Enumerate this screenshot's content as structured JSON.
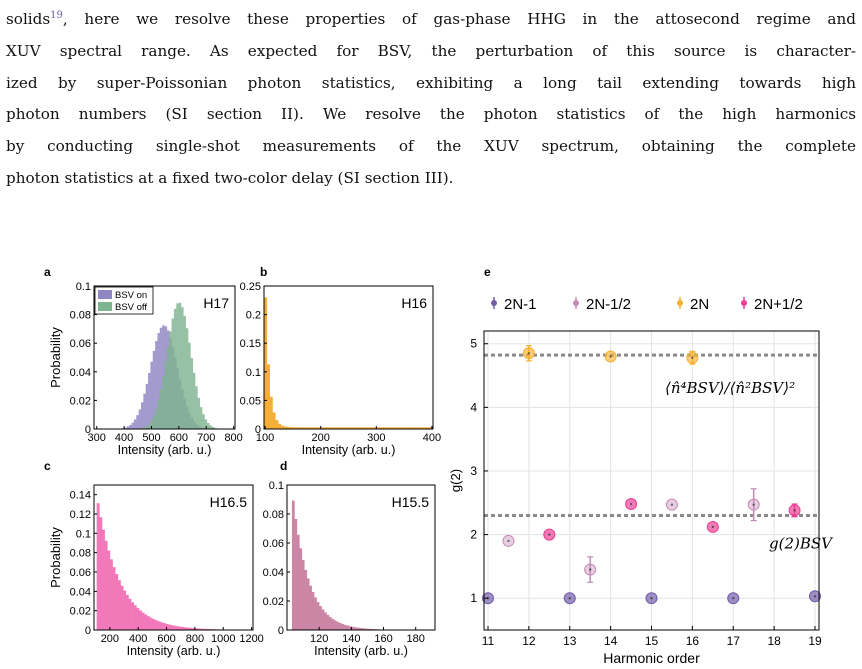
{
  "text": {
    "lines": [
      {
        "pre": "solids",
        "cite": "19",
        "post": ", here we resolve these properties of gas-phase HHG in the attosecond regime and"
      },
      {
        "pre": "XUV spectral range.  As expected for BSV, the perturbation of this source is character-"
      },
      {
        "pre": "ized by super-Poissonian photon statistics, exhibiting a long tail extending towards high"
      },
      {
        "pre": "photon numbers (SI section II). We resolve the photon statistics of the high harmonics"
      },
      {
        "pre": "by conducting single-shot measurements of the XUV spectrum, obtaining the complete"
      },
      {
        "pre": "photon statistics at a fixed two-color delay (SI section III)."
      }
    ]
  },
  "chart_data": [
    {
      "panel": "a",
      "type": "bar",
      "annotation": "H17",
      "xlabel": "Intensity (arb. u.)",
      "ylabel": "Probability",
      "xlim": [
        290,
        805
      ],
      "ylim": [
        0,
        0.1
      ],
      "xticks": [
        "300",
        "400",
        "500",
        "600",
        "700",
        "800"
      ],
      "yticks": [
        "0",
        "0.02",
        "0.04",
        "0.06",
        "0.08",
        "0.1"
      ],
      "legend": [
        "BSV on",
        "BSV off"
      ],
      "legend_position": "top-left",
      "series": [
        {
          "name": "BSV on",
          "color": "#8f86c4",
          "mean": 545,
          "sd": 48,
          "peak": 0.0725
        },
        {
          "name": "BSV off",
          "color": "#7fb491",
          "mean": 600,
          "sd": 43,
          "peak": 0.0885
        }
      ]
    },
    {
      "panel": "b",
      "type": "bar",
      "annotation": "H16",
      "xlabel": "Intensity (arb. u.)",
      "ylabel": "",
      "xlim": [
        98,
        402
      ],
      "ylim": [
        0,
        0.25
      ],
      "xticks": [
        "100",
        "200",
        "300",
        "400"
      ],
      "yticks": [
        "0",
        "0.05",
        "0.1",
        "0.15",
        "0.2",
        "0.25"
      ],
      "series": [
        {
          "name": "",
          "color": "#f5a623",
          "start": 100,
          "peak": 0.245,
          "decay": 7,
          "floor": 0.003
        }
      ]
    },
    {
      "panel": "c",
      "type": "bar",
      "annotation": "H16.5",
      "xlabel": "Intensity (arb. u.)",
      "ylabel": "Probability",
      "xlim": [
        88,
        1210
      ],
      "ylim": [
        0,
        0.15
      ],
      "xticks": [
        "200",
        "400",
        "600",
        "800",
        "1000",
        "1200"
      ],
      "yticks": [
        "0",
        "0.02",
        "0.04",
        "0.06",
        "0.08",
        "0.1",
        "0.12",
        "0.14"
      ],
      "series": [
        {
          "name": "",
          "color": "#f06ab2",
          "start": 100,
          "peak": 0.145,
          "decay": 160,
          "floor": 0
        }
      ]
    },
    {
      "panel": "d",
      "type": "bar",
      "annotation": "H15.5",
      "xlabel": "Intensity (arb. u.)",
      "ylabel": "",
      "xlim": [
        100,
        192
      ],
      "ylim": [
        0,
        0.1
      ],
      "xticks": [
        "120",
        "140",
        "160",
        "180"
      ],
      "yticks": [
        "0",
        "0.02",
        "0.04",
        "0.06",
        "0.08",
        "0.1"
      ],
      "series": [
        {
          "name": "",
          "color": "#c6799c",
          "start": 103,
          "peak": 0.097,
          "decay": 10,
          "floor": 0
        }
      ]
    },
    {
      "panel": "e",
      "type": "scatter",
      "xlabel": "Harmonic order",
      "ylabel": "g(2)",
      "xlim": [
        11,
        19
      ],
      "ylim": [
        0.5,
        5.2
      ],
      "xticks": [
        "11",
        "12",
        "13",
        "14",
        "15",
        "16",
        "17",
        "18",
        "19"
      ],
      "yticks": [
        "1",
        "2",
        "3",
        "4",
        "5"
      ],
      "grid": true,
      "legend_position": "top",
      "series": [
        {
          "name": "2N-1",
          "color": "#6f5aa8",
          "alpha": 0.9,
          "points": [
            [
              11,
              1.0,
              0.03
            ],
            [
              13,
              1.0,
              0.03
            ],
            [
              15,
              1.0,
              0.03
            ],
            [
              17,
              1.0,
              0.03
            ],
            [
              19,
              1.03,
              0.03
            ]
          ]
        },
        {
          "name": "2N-1/2",
          "color": "#c48bb5",
          "alpha": 0.55,
          "points": [
            [
              11.5,
              1.9,
              0.05
            ],
            [
              13.5,
              1.45,
              0.2
            ],
            [
              15.5,
              2.47,
              0.05
            ],
            [
              17.5,
              2.47,
              0.25
            ]
          ]
        },
        {
          "name": "2N",
          "color": "#f7b030",
          "alpha": 0.85,
          "points": [
            [
              12,
              4.85,
              0.12
            ],
            [
              14,
              4.8,
              0.05
            ],
            [
              16,
              4.78,
              0.1
            ]
          ]
        },
        {
          "name": "2N+1/2",
          "color": "#ec3c93",
          "alpha": 0.9,
          "points": [
            [
              12.5,
              2.0,
              0.05
            ],
            [
              14.5,
              2.48,
              0.05
            ],
            [
              16.5,
              2.12,
              0.05
            ],
            [
              18.5,
              2.38,
              0.1
            ]
          ]
        }
      ],
      "reference_lines": [
        {
          "y": 4.82,
          "label": "⟨n̂⁴BSV⟩/⟨n̂²BSV⟩²"
        },
        {
          "y": 2.3,
          "label": "g(2)BSV"
        }
      ]
    }
  ],
  "panel_labels": [
    "a",
    "b",
    "c",
    "d",
    "e"
  ]
}
